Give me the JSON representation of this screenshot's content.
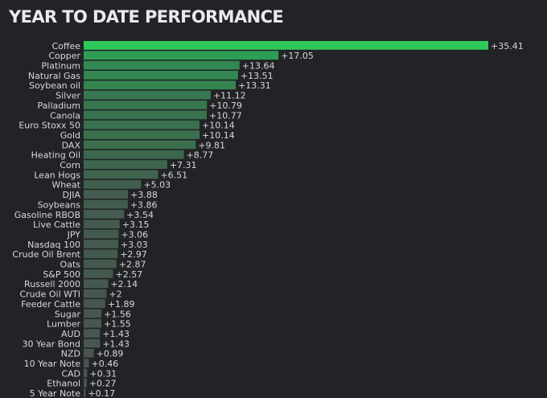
{
  "chart_data": {
    "type": "bar",
    "orientation": "horizontal",
    "title": "YEAR TO DATE PERFORMANCE",
    "xlabel": "",
    "ylabel": "",
    "grid": false,
    "value_prefix": "+",
    "categories": [
      "Coffee",
      "Copper",
      "Platinum",
      "Natural Gas",
      "Soybean oil",
      "Silver",
      "Palladium",
      "Canola",
      "Euro Stoxx 50",
      "Gold",
      "DAX",
      "Heating Oil",
      "Corn",
      "Lean Hogs",
      "Wheat",
      "DJIA",
      "Soybeans",
      "Gasoline RBOB",
      "Live Cattle",
      "JPY",
      "Nasdaq 100",
      "Crude Oil Brent",
      "Oats",
      "S&P 500",
      "Russell 2000",
      "Crude Oil WTI",
      "Feeder Cattle",
      "Sugar",
      "Lumber",
      "AUD",
      "30 Year Bond",
      "NZD",
      "10 Year Note",
      "CAD",
      "Ethanol",
      "5 Year Note"
    ],
    "values": [
      35.41,
      17.05,
      13.64,
      13.51,
      13.31,
      11.12,
      10.79,
      10.77,
      10.14,
      10.14,
      9.81,
      8.77,
      7.31,
      6.51,
      5.03,
      3.88,
      3.86,
      3.54,
      3.15,
      3.06,
      3.03,
      2.97,
      2.87,
      2.57,
      2.14,
      2,
      1.89,
      1.56,
      1.55,
      1.43,
      1.43,
      0.89,
      0.46,
      0.31,
      0.27,
      0.17
    ],
    "colors": {
      "background": "#222326",
      "top_bar": "#2ec95a",
      "strong": "#2f9e55",
      "medium": "#3b6b4d",
      "weak": "#4a5250",
      "text": "#d7d8da"
    }
  }
}
